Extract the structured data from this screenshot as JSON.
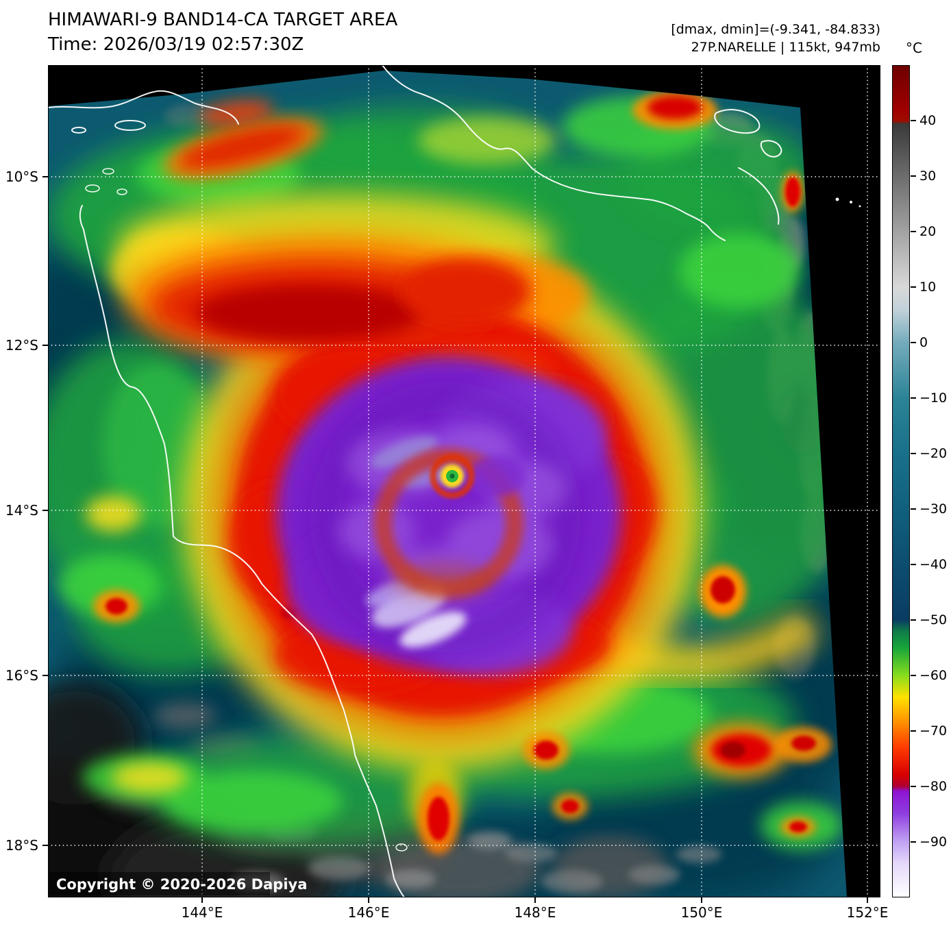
{
  "header": {
    "title": "HIMAWARI-9 BAND14-CA TARGET AREA",
    "time": "Time: 2026/03/19 02:57:30Z",
    "dmax_dmin": "[dmax, dmin]=(-9.341, -84.833)",
    "storm": "27P.NARELLE | 115kt, 947mb"
  },
  "colorbar": {
    "unit": "°C",
    "tick_values": [
      40,
      30,
      20,
      10,
      0,
      -10,
      -20,
      -30,
      -40,
      -50,
      -60,
      -70,
      -80,
      -90
    ],
    "tick_labels": [
      "40",
      "30",
      "20",
      "10",
      "0",
      "−10",
      "−20",
      "−30",
      "−40",
      "−50",
      "−60",
      "−70",
      "−80",
      "−90"
    ],
    "stops": [
      {
        "t": 50,
        "c": "#6e0000"
      },
      {
        "t": 42,
        "c": "#a00000"
      },
      {
        "t": 40,
        "c": "#9e0e00"
      },
      {
        "t": 39.5,
        "c": "#3a3a3a"
      },
      {
        "t": 10,
        "c": "#d8d8d8"
      },
      {
        "t": 6,
        "c": "#c2d2da"
      },
      {
        "t": 0,
        "c": "#74abbc"
      },
      {
        "t": -10,
        "c": "#2b8496"
      },
      {
        "t": -20,
        "c": "#19708a"
      },
      {
        "t": -30,
        "c": "#11607e"
      },
      {
        "t": -40,
        "c": "#0c4d70"
      },
      {
        "t": -50,
        "c": "#0a3c63"
      },
      {
        "t": -52,
        "c": "#0f7a4a"
      },
      {
        "t": -55,
        "c": "#16a53a"
      },
      {
        "t": -60,
        "c": "#86dc1e"
      },
      {
        "t": -64,
        "c": "#ffe100"
      },
      {
        "t": -68.5,
        "c": "#ff9000"
      },
      {
        "t": -73,
        "c": "#ff3c00"
      },
      {
        "t": -78,
        "c": "#d80000"
      },
      {
        "t": -80,
        "c": "#b00030"
      },
      {
        "t": -81,
        "c": "#8d14d2"
      },
      {
        "t": -85,
        "c": "#8f3ee0"
      },
      {
        "t": -90,
        "c": "#c0a1f2"
      },
      {
        "t": -94,
        "c": "#e4d8fa"
      },
      {
        "t": -100,
        "c": "#ffffff"
      }
    ]
  },
  "axes": {
    "lat_labels": [
      "10°S",
      "12°S",
      "14°S",
      "16°S",
      "18°S"
    ],
    "lon_labels": [
      "144°E",
      "146°E",
      "148°E",
      "150°E",
      "152°E"
    ]
  },
  "map": {
    "copyright": "Copyright © 2020-2026 Dapiya"
  },
  "colors": {
    "ocean_teal": "#0d5a70",
    "cold_cloud_purple": "#7a22cc",
    "eyewall_red": "#e81500",
    "band_orange": "#ff8e00",
    "band_yellow": "#ffd91e",
    "band_green": "#1ea43e",
    "coastline": "#ffffff",
    "no_data": "#000000"
  }
}
